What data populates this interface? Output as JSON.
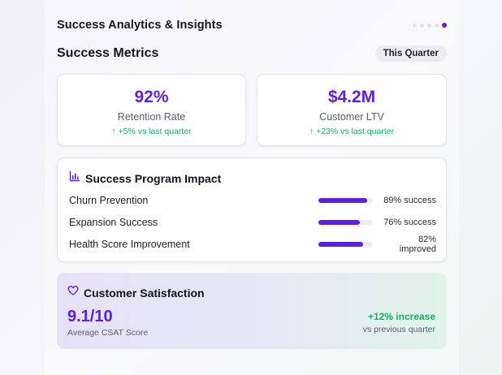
{
  "header": {
    "title": "Success Analytics & Insights"
  },
  "pagination": {
    "count": 5,
    "active_index": 4
  },
  "section": {
    "title": "Success Metrics",
    "period": "This Quarter"
  },
  "metrics": [
    {
      "value": "92%",
      "label": "Retention Rate",
      "change": "↑ +5% vs last quarter"
    },
    {
      "value": "$4.2M",
      "label": "Customer LTV",
      "change": "↑ +23% vs last quarter"
    }
  ],
  "impact": {
    "icon": "bar-chart-icon",
    "title": "Success Program Impact",
    "rows": [
      {
        "label": "Churn Prevention",
        "value_text": "89% success",
        "level": 0.89
      },
      {
        "label": "Expansion Success",
        "value_text": "76% success",
        "level": 0.76
      },
      {
        "label": "Health Score Improvement",
        "value_text": "82% improved",
        "level": 0.82
      }
    ]
  },
  "satisfaction": {
    "icon": "heart-icon",
    "title": "Customer Satisfaction",
    "score": "9.1/10",
    "score_label": "Average CSAT Score",
    "change": "+12% increase",
    "change_label": "vs previous quarter"
  },
  "colors": {
    "accent": "#5b1fe8",
    "positive": "#17b060"
  }
}
